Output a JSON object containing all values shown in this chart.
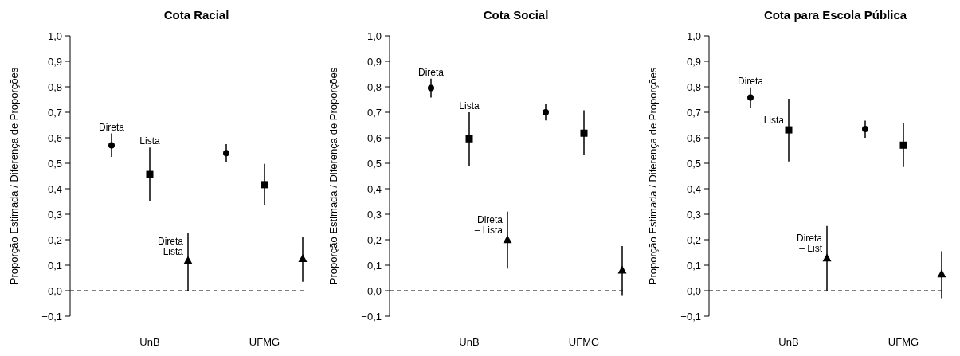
{
  "chart_data": [
    {
      "type": "scatter",
      "title": "Cota Racial",
      "ylabel": "Proporção Estimada / Diferença de Proporções",
      "categories": [
        null,
        "UnB",
        null,
        null,
        "UFMG",
        null
      ],
      "ylim": [
        -0.1,
        1.0
      ],
      "yticks": [
        {
          "value": -0.1,
          "label": "−0,1"
        },
        {
          "value": 0,
          "label": "0,0"
        },
        {
          "value": 0.1,
          "label": "0,1"
        },
        {
          "value": 0.2,
          "label": "0,2"
        },
        {
          "value": 0.3,
          "label": "0,3"
        },
        {
          "value": 0.4,
          "label": "0,4"
        },
        {
          "value": 0.5,
          "label": "0,5"
        },
        {
          "value": 0.6,
          "label": "0,6"
        },
        {
          "value": 0.7,
          "label": "0,7"
        },
        {
          "value": 0.8,
          "label": "0,8"
        },
        {
          "value": 0.9,
          "label": "0,9"
        },
        {
          "value": 1.0,
          "label": "1,0"
        }
      ],
      "ref_lines": [
        {
          "axis": "y",
          "value": 0,
          "line_style": "dashed",
          "color": "#000000"
        }
      ],
      "grid": false,
      "series": [
        {
          "name": "Direta",
          "color": "#000000",
          "marker": "circle",
          "values": [
            0.57,
            null,
            null,
            0.54,
            null,
            null
          ],
          "errors": [
            [
              0.525,
              0.617
            ],
            null,
            null,
            [
              0.504,
              0.575
            ],
            null,
            null
          ]
        },
        {
          "name": "Lista",
          "color": "#000000",
          "marker": "square",
          "values": [
            null,
            0.456,
            null,
            null,
            0.416,
            null
          ],
          "errors": [
            null,
            [
              0.35,
              0.562
            ],
            null,
            null,
            [
              0.334,
              0.498
            ],
            null
          ]
        },
        {
          "name": "Direta\n– Lista",
          "color": "#000000",
          "marker": "triangle",
          "values": [
            null,
            null,
            0.117,
            null,
            null,
            0.125
          ],
          "errors": [
            null,
            null,
            [
              0,
              0.228
            ],
            null,
            null,
            [
              0.035,
              0.21
            ]
          ]
        }
      ]
    },
    {
      "type": "scatter",
      "title": "Cota Social",
      "ylabel": "Proporção Estimada / Diferença de Proporções",
      "categories": [
        null,
        "UnB",
        null,
        null,
        "UFMG",
        null
      ],
      "ylim": [
        -0.1,
        1.0
      ],
      "yticks": [
        {
          "value": -0.1,
          "label": "−0,1"
        },
        {
          "value": 0,
          "label": "0,0"
        },
        {
          "value": 0.1,
          "label": "0,1"
        },
        {
          "value": 0.2,
          "label": "0,2"
        },
        {
          "value": 0.3,
          "label": "0,3"
        },
        {
          "value": 0.4,
          "label": "0,4"
        },
        {
          "value": 0.5,
          "label": "0,5"
        },
        {
          "value": 0.6,
          "label": "0,6"
        },
        {
          "value": 0.7,
          "label": "0,7"
        },
        {
          "value": 0.8,
          "label": "0,8"
        },
        {
          "value": 0.9,
          "label": "0,9"
        },
        {
          "value": 1.0,
          "label": "1,0"
        }
      ],
      "ref_lines": [
        {
          "axis": "y",
          "value": 0,
          "line_style": "dashed",
          "color": "#000000"
        }
      ],
      "grid": false,
      "series": [
        {
          "name": "Direta",
          "color": "#000000",
          "marker": "circle",
          "values": [
            0.795,
            null,
            null,
            0.7,
            null,
            null
          ],
          "errors": [
            [
              0.758,
              0.832
            ],
            null,
            null,
            [
              0.668,
              0.734
            ],
            null,
            null
          ]
        },
        {
          "name": "Lista",
          "color": "#000000",
          "marker": "square",
          "values": [
            null,
            0.596,
            null,
            null,
            0.618,
            null
          ],
          "errors": [
            null,
            [
              0.491,
              0.7
            ],
            null,
            null,
            [
              0.532,
              0.708
            ],
            null
          ]
        },
        {
          "name": "Direta\n– Lista",
          "color": "#000000",
          "marker": "triangle",
          "values": [
            null,
            null,
            0.199,
            null,
            null,
            0.08
          ],
          "errors": [
            null,
            null,
            [
              0.087,
              0.31
            ],
            null,
            null,
            [
              -0.02,
              0.175
            ]
          ]
        }
      ]
    },
    {
      "type": "scatter",
      "title": "Cota para Escola Pública",
      "ylabel": "Proporção Estimada / Diferença de Proporções",
      "categories": [
        null,
        "UnB",
        null,
        null,
        "UFMG",
        null
      ],
      "ylim": [
        -0.1,
        1.0
      ],
      "yticks": [
        {
          "value": -0.1,
          "label": "−0,1"
        },
        {
          "value": 0,
          "label": "0,0"
        },
        {
          "value": 0.1,
          "label": "0,1"
        },
        {
          "value": 0.2,
          "label": "0,2"
        },
        {
          "value": 0.3,
          "label": "0,3"
        },
        {
          "value": 0.4,
          "label": "0,4"
        },
        {
          "value": 0.5,
          "label": "0,5"
        },
        {
          "value": 0.6,
          "label": "0,6"
        },
        {
          "value": 0.7,
          "label": "0,7"
        },
        {
          "value": 0.8,
          "label": "0,8"
        },
        {
          "value": 0.9,
          "label": "0,9"
        },
        {
          "value": 1.0,
          "label": "1,0"
        }
      ],
      "ref_lines": [
        {
          "axis": "y",
          "value": 0,
          "line_style": "dashed",
          "color": "#000000"
        }
      ],
      "grid": false,
      "series": [
        {
          "name": "Direta",
          "color": "#000000",
          "marker": "circle",
          "values": [
            0.758,
            null,
            null,
            0.634,
            null,
            null
          ],
          "errors": [
            [
              0.718,
              0.798
            ],
            null,
            null,
            [
              0.6,
              0.667
            ],
            null,
            null
          ]
        },
        {
          "name": "Lista",
          "color": "#000000",
          "marker": "square",
          "values": [
            null,
            0.631,
            null,
            null,
            0.571,
            null
          ],
          "errors": [
            null,
            [
              0.507,
              0.753
            ],
            null,
            null,
            [
              0.485,
              0.657
            ],
            null
          ]
        },
        {
          "name": "Direta\n– List",
          "color": "#000000",
          "marker": "triangle",
          "values": [
            null,
            null,
            0.127,
            null,
            null,
            0.065
          ],
          "errors": [
            null,
            null,
            [
              0,
              0.254
            ],
            null,
            null,
            [
              -0.03,
              0.155
            ]
          ]
        }
      ]
    }
  ]
}
